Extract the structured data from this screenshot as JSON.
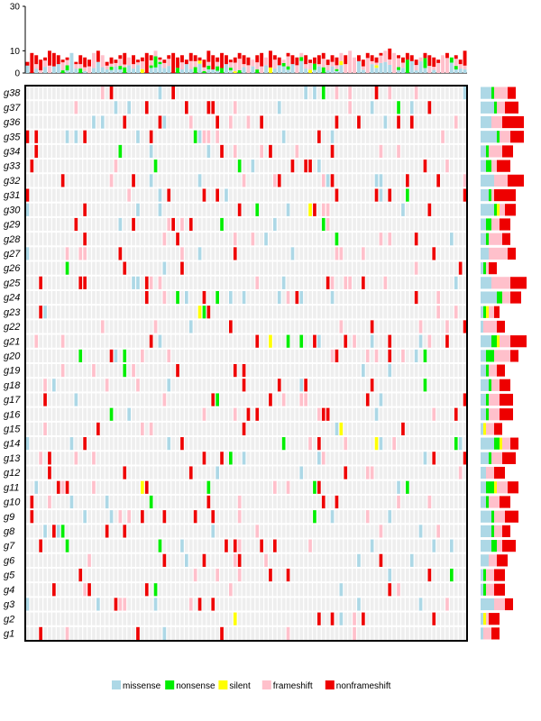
{
  "chart_data": {
    "type": "heatmap",
    "title": "",
    "top_axis": {
      "ylim": [
        0,
        30
      ],
      "ticks": [
        0,
        10,
        30
      ]
    },
    "n_samples": 100,
    "genes": [
      "g38",
      "g37",
      "g36",
      "g35",
      "g34",
      "g33",
      "g32",
      "g31",
      "g30",
      "g29",
      "g28",
      "g27",
      "g26",
      "g25",
      "g24",
      "g23",
      "g22",
      "g21",
      "g20",
      "g19",
      "g18",
      "g17",
      "g16",
      "g15",
      "g14",
      "g13",
      "g12",
      "g11",
      "g10",
      "g9",
      "g8",
      "g7",
      "g6",
      "g5",
      "g4",
      "g3",
      "g2",
      "g1"
    ],
    "categories": [
      "missense",
      "nonsense",
      "silent",
      "frameshift",
      "nonframeshift"
    ],
    "legend": [
      {
        "key": "missense",
        "label": "missense",
        "color": "#add8e6"
      },
      {
        "key": "nonsense",
        "label": "nonsense",
        "color": "#00ee00"
      },
      {
        "key": "silent",
        "label": "silent",
        "color": "#ffff00"
      },
      {
        "key": "frameshift",
        "label": "frameshift",
        "color": "#ffc0cb"
      },
      {
        "key": "nonframeshift",
        "label": "nonframeshift",
        "color": "#ee0000"
      }
    ],
    "background_color": "#eeeeee",
    "sample_totals": [
      5,
      9,
      8,
      6,
      7,
      10,
      9,
      8,
      6,
      7,
      9,
      5,
      8,
      7,
      6,
      9,
      10,
      8,
      5,
      7,
      6,
      8,
      9,
      7,
      8,
      6,
      7,
      9,
      8,
      10,
      7,
      6,
      8,
      9,
      7,
      8,
      6,
      9,
      8,
      7,
      6,
      10,
      8,
      7,
      9,
      8,
      6,
      7,
      9,
      8,
      7,
      6,
      8,
      9,
      7,
      10,
      8,
      7,
      6,
      9,
      8,
      7,
      9,
      8,
      6,
      7,
      8,
      9,
      6,
      8,
      7,
      9,
      8,
      10,
      7,
      8,
      6,
      9,
      8,
      7,
      9,
      10,
      11,
      9,
      8,
      7,
      9,
      8,
      6,
      7,
      9,
      8,
      7,
      6,
      8,
      9,
      7,
      8,
      6,
      10
    ],
    "gene_counts": [
      {
        "gene": "g38",
        "missense": 4,
        "nonsense": 1,
        "silent": 0,
        "frameshift": 5,
        "nonframeshift": 3
      },
      {
        "gene": "g37",
        "missense": 5,
        "nonsense": 1,
        "silent": 0,
        "frameshift": 3,
        "nonframeshift": 5
      },
      {
        "gene": "g36",
        "missense": 4,
        "nonsense": 0,
        "silent": 0,
        "frameshift": 4,
        "nonframeshift": 8
      },
      {
        "gene": "g35",
        "missense": 6,
        "nonsense": 1,
        "silent": 0,
        "frameshift": 4,
        "nonframeshift": 5
      },
      {
        "gene": "g34",
        "missense": 2,
        "nonsense": 1,
        "silent": 0,
        "frameshift": 5,
        "nonframeshift": 4
      },
      {
        "gene": "g33",
        "missense": 2,
        "nonsense": 2,
        "silent": 0,
        "frameshift": 2,
        "nonframeshift": 5
      },
      {
        "gene": "g32",
        "missense": 5,
        "nonsense": 0,
        "silent": 0,
        "frameshift": 5,
        "nonframeshift": 6
      },
      {
        "gene": "g31",
        "missense": 3,
        "nonsense": 1,
        "silent": 0,
        "frameshift": 1,
        "nonframeshift": 8
      },
      {
        "gene": "g30",
        "missense": 5,
        "nonsense": 1,
        "silent": 1,
        "frameshift": 2,
        "nonframeshift": 4
      },
      {
        "gene": "g29",
        "missense": 2,
        "nonsense": 2,
        "silent": 0,
        "frameshift": 3,
        "nonframeshift": 4
      },
      {
        "gene": "g28",
        "missense": 2,
        "nonsense": 1,
        "silent": 0,
        "frameshift": 5,
        "nonframeshift": 3
      },
      {
        "gene": "g27",
        "missense": 3,
        "nonsense": 0,
        "silent": 0,
        "frameshift": 7,
        "nonframeshift": 3
      },
      {
        "gene": "g26",
        "missense": 1,
        "nonsense": 1,
        "silent": 0,
        "frameshift": 1,
        "nonframeshift": 3
      },
      {
        "gene": "g25",
        "missense": 4,
        "nonsense": 0,
        "silent": 0,
        "frameshift": 7,
        "nonframeshift": 6
      },
      {
        "gene": "g24",
        "missense": 6,
        "nonsense": 2,
        "silent": 0,
        "frameshift": 3,
        "nonframeshift": 4
      },
      {
        "gene": "g23",
        "missense": 1,
        "nonsense": 1,
        "silent": 1,
        "frameshift": 2,
        "nonframeshift": 2
      },
      {
        "gene": "g22",
        "missense": 1,
        "nonsense": 0,
        "silent": 0,
        "frameshift": 5,
        "nonframeshift": 3
      },
      {
        "gene": "g21",
        "missense": 4,
        "nonsense": 2,
        "silent": 1,
        "frameshift": 4,
        "nonframeshift": 6
      },
      {
        "gene": "g20",
        "missense": 2,
        "nonsense": 3,
        "silent": 0,
        "frameshift": 6,
        "nonframeshift": 3
      },
      {
        "gene": "g19",
        "missense": 2,
        "nonsense": 1,
        "silent": 0,
        "frameshift": 3,
        "nonframeshift": 3
      },
      {
        "gene": "g18",
        "missense": 3,
        "nonsense": 1,
        "silent": 0,
        "frameshift": 3,
        "nonframeshift": 4
      },
      {
        "gene": "g17",
        "missense": 2,
        "nonsense": 1,
        "silent": 0,
        "frameshift": 4,
        "nonframeshift": 5
      },
      {
        "gene": "g16",
        "missense": 2,
        "nonsense": 1,
        "silent": 0,
        "frameshift": 4,
        "nonframeshift": 5
      },
      {
        "gene": "g15",
        "missense": 1,
        "nonsense": 0,
        "silent": 1,
        "frameshift": 3,
        "nonframeshift": 3
      },
      {
        "gene": "g14",
        "missense": 5,
        "nonsense": 2,
        "silent": 1,
        "frameshift": 3,
        "nonframeshift": 3
      },
      {
        "gene": "g13",
        "missense": 3,
        "nonsense": 1,
        "silent": 0,
        "frameshift": 4,
        "nonframeshift": 5
      },
      {
        "gene": "g12",
        "missense": 2,
        "nonsense": 0,
        "silent": 0,
        "frameshift": 3,
        "nonframeshift": 4
      },
      {
        "gene": "g11",
        "missense": 2,
        "nonsense": 3,
        "silent": 1,
        "frameshift": 4,
        "nonframeshift": 4
      },
      {
        "gene": "g10",
        "missense": 2,
        "nonsense": 1,
        "silent": 0,
        "frameshift": 4,
        "nonframeshift": 4
      },
      {
        "gene": "g9",
        "missense": 4,
        "nonsense": 1,
        "silent": 0,
        "frameshift": 4,
        "nonframeshift": 5
      },
      {
        "gene": "g8",
        "missense": 4,
        "nonsense": 1,
        "silent": 0,
        "frameshift": 3,
        "nonframeshift": 3
      },
      {
        "gene": "g7",
        "missense": 4,
        "nonsense": 2,
        "silent": 0,
        "frameshift": 2,
        "nonframeshift": 5
      },
      {
        "gene": "g6",
        "missense": 3,
        "nonsense": 0,
        "silent": 0,
        "frameshift": 3,
        "nonframeshift": 4
      },
      {
        "gene": "g5",
        "missense": 1,
        "nonsense": 1,
        "silent": 0,
        "frameshift": 3,
        "nonframeshift": 4
      },
      {
        "gene": "g4",
        "missense": 1,
        "nonsense": 1,
        "silent": 0,
        "frameshift": 3,
        "nonframeshift": 4
      },
      {
        "gene": "g3",
        "missense": 5,
        "nonsense": 0,
        "silent": 0,
        "frameshift": 4,
        "nonframeshift": 3
      },
      {
        "gene": "g2",
        "missense": 1,
        "nonsense": 0,
        "silent": 1,
        "frameshift": 1,
        "nonframeshift": 4
      },
      {
        "gene": "g1",
        "missense": 1,
        "nonsense": 0,
        "silent": 0,
        "frameshift": 3,
        "nonframeshift": 3
      }
    ]
  }
}
